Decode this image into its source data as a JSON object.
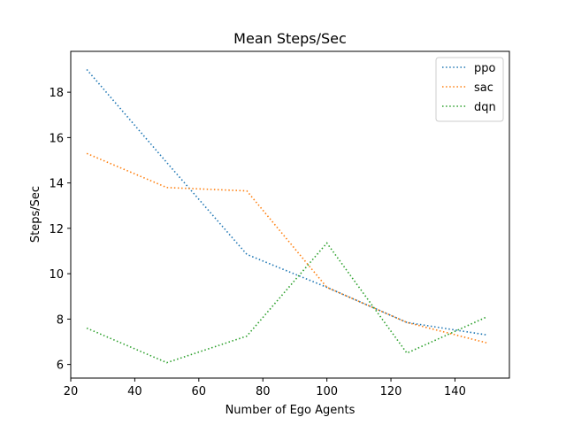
{
  "chart_data": {
    "type": "line",
    "title": "Mean Steps/Sec",
    "xlabel": "Number of Ego Agents",
    "ylabel": "Steps/Sec",
    "xlim": [
      20,
      157
    ],
    "ylim": [
      5.4,
      19.8
    ],
    "xticks": [
      20,
      40,
      60,
      80,
      100,
      120,
      140
    ],
    "yticks": [
      6,
      8,
      10,
      12,
      14,
      16,
      18
    ],
    "x": [
      25,
      50,
      75,
      100,
      125,
      150
    ],
    "series": [
      {
        "name": "ppo",
        "color": "#1f77b4",
        "values": [
          19.0,
          14.9,
          10.85,
          9.4,
          7.85,
          7.3
        ]
      },
      {
        "name": "sac",
        "color": "#ff7f0e",
        "values": [
          15.3,
          13.8,
          13.65,
          9.4,
          7.85,
          6.95
        ]
      },
      {
        "name": "dqn",
        "color": "#2ca02c",
        "values": [
          7.6,
          6.08,
          7.25,
          11.35,
          6.5,
          8.1
        ]
      }
    ],
    "line_style": "dotted",
    "grid": false,
    "legend_position": "top-right"
  }
}
